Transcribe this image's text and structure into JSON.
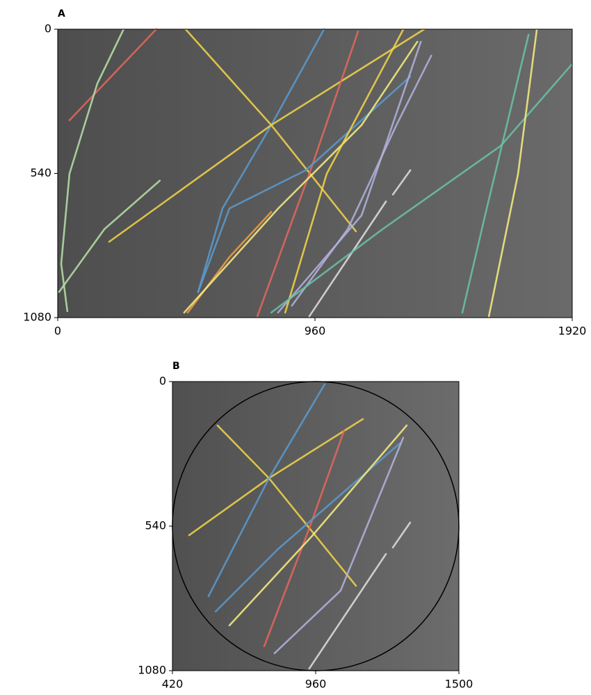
{
  "chart_data": [
    {
      "type": "line",
      "panel": "A",
      "xlim": [
        0,
        1920
      ],
      "ylim": [
        1080,
        0
      ],
      "xticks": [
        0,
        960,
        1920
      ],
      "yticks": [
        0,
        540,
        1080
      ],
      "series": [
        {
          "color": "#e8675b",
          "x": [
            44,
            368
          ],
          "y": [
            341,
            0
          ]
        },
        {
          "color": "#b9e2a8",
          "x": [
            246,
            148,
            44,
            13,
            36
          ],
          "y": [
            0,
            203,
            541,
            879,
            1056
          ]
        },
        {
          "color": "#b9e2a8",
          "x": [
            5,
            174,
            381
          ],
          "y": [
            984,
            749,
            567
          ]
        },
        {
          "color": "#f5d648",
          "x": [
            477,
            797,
            1113
          ],
          "y": [
            0,
            359,
            757
          ]
        },
        {
          "color": "#5b9bd0",
          "x": [
            994,
            797,
            615,
            524
          ],
          "y": [
            0,
            359,
            671,
            984
          ]
        },
        {
          "color": "#f5d648",
          "x": [
            192,
            797,
            1368
          ],
          "y": [
            796,
            359,
            0
          ]
        },
        {
          "color": "#e8675b",
          "x": [
            1121,
            939,
            745
          ],
          "y": [
            8,
            541,
            1075
          ]
        },
        {
          "color": "#5b9bd0",
          "x": [
            524,
            641,
            926,
            1316
          ],
          "y": [
            984,
            671,
            528,
            177
          ]
        },
        {
          "color": "#f5a040",
          "x": [
            485,
            641,
            797
          ],
          "y": [
            1061,
            853,
            684
          ]
        },
        {
          "color": "#f8ee80",
          "x": [
            472,
            823,
            1134,
            1342
          ],
          "y": [
            1061,
            671,
            359,
            47
          ]
        },
        {
          "color": "#f5d648",
          "x": [
            849,
            1004,
            1290
          ],
          "y": [
            1061,
            541,
            0
          ]
        },
        {
          "color": "#b3b3df",
          "x": [
            874,
            1082,
            1264,
            1394
          ],
          "y": [
            1035,
            749,
            359,
            99
          ]
        },
        {
          "color": "#b3b3df",
          "x": [
            822,
            1134,
            1355
          ],
          "y": [
            1061,
            697,
            47
          ]
        },
        {
          "color": "#e0e0e0",
          "x": [
            939,
            1225
          ],
          "y": [
            1075,
            645
          ]
        },
        {
          "color": "#e0e0e0",
          "x": [
            1251,
            1316
          ],
          "y": [
            619,
            528
          ]
        },
        {
          "color": "#6cc2a8",
          "x": [
            797,
            1212,
            1653,
            1920
          ],
          "y": [
            1061,
            749,
            437,
            130
          ]
        },
        {
          "color": "#6cc2a8",
          "x": [
            1510,
            1601,
            1757
          ],
          "y": [
            1061,
            671,
            21
          ]
        },
        {
          "color": "#f8ee80",
          "x": [
            1609,
            1718,
            1788
          ],
          "y": [
            1075,
            541,
            0
          ]
        }
      ]
    },
    {
      "type": "line",
      "panel": "B",
      "xlim": [
        420,
        1500
      ],
      "ylim": [
        1080,
        0
      ],
      "xticks": [
        420,
        960,
        1500
      ],
      "yticks": [
        0,
        540,
        1080
      ],
      "circle": {
        "center": [
          960,
          540
        ],
        "radius": 540
      },
      "series": [
        {
          "color": "#f5d648",
          "x": [
            590,
            784,
            1112
          ],
          "y": [
            164,
            361,
            763
          ]
        },
        {
          "color": "#f5d648",
          "x": [
            483,
            784,
            1138
          ],
          "y": [
            574,
            361,
            140
          ]
        },
        {
          "color": "#5b9bd0",
          "x": [
            994,
            784,
            556
          ],
          "y": [
            10,
            361,
            802
          ]
        },
        {
          "color": "#e8675b",
          "x": [
            1067,
            936,
            766
          ],
          "y": [
            184,
            548,
            989
          ]
        },
        {
          "color": "#5b9bd0",
          "x": [
            583,
            818,
            1277
          ],
          "y": [
            859,
            626,
            231
          ]
        },
        {
          "color": "#f8ee80",
          "x": [
            635,
            949,
            1303
          ],
          "y": [
            911,
            574,
            164
          ]
        },
        {
          "color": "#b3b3df",
          "x": [
            805,
            1054,
            1290
          ],
          "y": [
            1015,
            781,
            210
          ]
        },
        {
          "color": "#e0e0e0",
          "x": [
            936,
            1225
          ],
          "y": [
            1072,
            644
          ]
        },
        {
          "color": "#e0e0e0",
          "x": [
            1251,
            1316
          ],
          "y": [
            620,
            527
          ]
        }
      ]
    }
  ]
}
